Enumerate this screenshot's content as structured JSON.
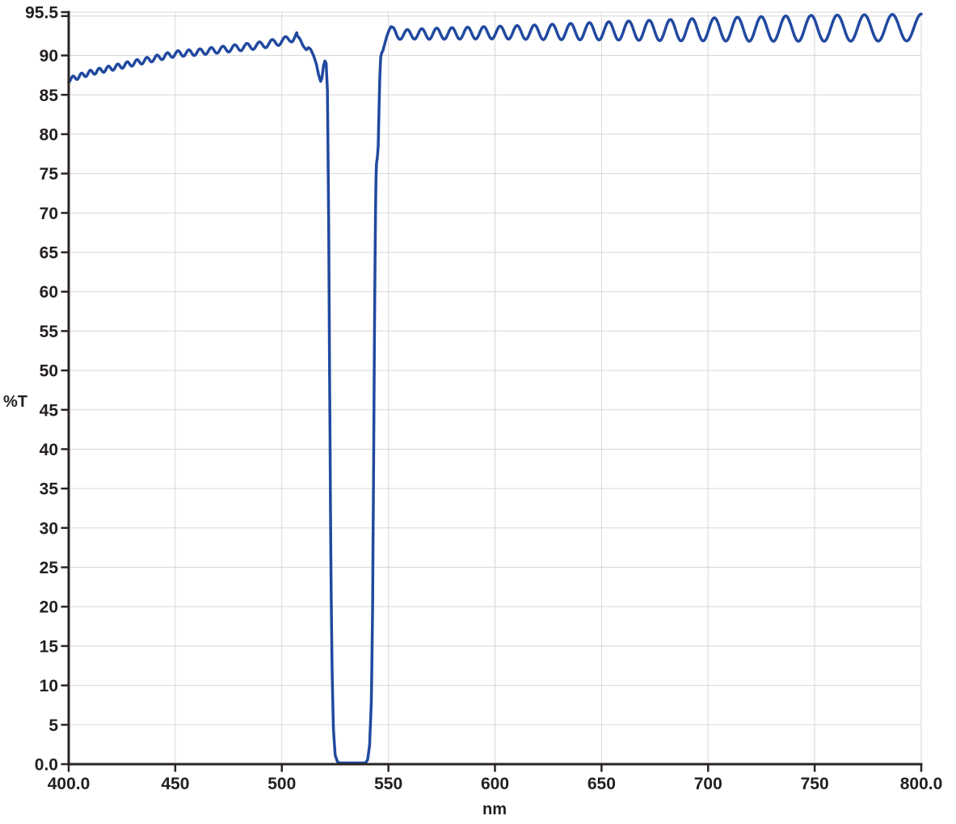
{
  "chart_data": {
    "type": "line",
    "title": "",
    "xlabel": "nm",
    "ylabel": "%T",
    "xlim": [
      400,
      800
    ],
    "ylim": [
      0,
      95.5
    ],
    "grid": true,
    "legend": "none",
    "x_ticks": [
      {
        "value": 400,
        "label": "400.0",
        "grid": false
      },
      {
        "value": 450,
        "label": "450",
        "grid": true
      },
      {
        "value": 500,
        "label": "500",
        "grid": true
      },
      {
        "value": 550,
        "label": "550",
        "grid": true
      },
      {
        "value": 600,
        "label": "600",
        "grid": true
      },
      {
        "value": 650,
        "label": "650",
        "grid": true
      },
      {
        "value": 700,
        "label": "700",
        "grid": true
      },
      {
        "value": 750,
        "label": "750",
        "grid": true
      },
      {
        "value": 800,
        "label": "800.0",
        "grid": true
      }
    ],
    "y_ticks": [
      {
        "value": 95.5,
        "label": "95.5",
        "grid": true
      },
      {
        "value": 95,
        "label": "",
        "grid": true
      },
      {
        "value": 90,
        "label": "90",
        "grid": true
      },
      {
        "value": 85,
        "label": "85",
        "grid": true
      },
      {
        "value": 80,
        "label": "80",
        "grid": true
      },
      {
        "value": 75,
        "label": "75",
        "grid": true
      },
      {
        "value": 70,
        "label": "70",
        "grid": true
      },
      {
        "value": 65,
        "label": "65",
        "grid": true
      },
      {
        "value": 60,
        "label": "60",
        "grid": true
      },
      {
        "value": 55,
        "label": "55",
        "grid": true
      },
      {
        "value": 50,
        "label": "50",
        "grid": true
      },
      {
        "value": 45,
        "label": "45",
        "grid": true
      },
      {
        "value": 40,
        "label": "40",
        "grid": true
      },
      {
        "value": 35,
        "label": "35",
        "grid": true
      },
      {
        "value": 30,
        "label": "30",
        "grid": true
      },
      {
        "value": 25,
        "label": "25",
        "grid": true
      },
      {
        "value": 20,
        "label": "20",
        "grid": true
      },
      {
        "value": 15,
        "label": "15",
        "grid": true
      },
      {
        "value": 10,
        "label": "10",
        "grid": true
      },
      {
        "value": 5,
        "label": "5",
        "grid": true
      },
      {
        "value": 0,
        "label": "0.0",
        "grid": false
      }
    ],
    "key_values": {
      "notch_center_nm": 532.8,
      "notch_width_50pct_nm": 20.9,
      "notch_50pct_edges_nm": [
        522.4,
        543.3
      ],
      "min_transmission_pct": 0.15,
      "max_transmission_pct": 95.3,
      "recovery_edge_step_pct": 77
    },
    "series": [
      {
        "name": "transmission spectrum",
        "color": "#2149A0",
        "description": "Notch filter %T spectrum: rippled 87-93%T (400-520 nm), blocking band ~0%T (525-540 nm), rippled 92-95%T (550-800 nm) with fringe period and amplitude growing toward 800 nm",
        "model": {
          "left": {
            "envelope": [
              [
                400,
                86.9
              ],
              [
                410,
                87.8
              ],
              [
                420,
                88.4
              ],
              [
                430,
                89.0
              ],
              [
                440,
                89.6
              ],
              [
                450,
                90.2
              ],
              [
                460,
                90.4
              ],
              [
                470,
                90.7
              ],
              [
                480,
                91.0
              ],
              [
                490,
                91.3
              ],
              [
                500,
                91.8
              ],
              [
                505,
                92.2
              ],
              [
                507,
                92.6
              ]
            ],
            "ripple_amp": [
              [
                400,
                0.3
              ],
              [
                500,
                0.45
              ],
              [
                507,
                0.45
              ]
            ],
            "ripple_inv_lambda_spacing": 2.47e-05,
            "ripple_ref_lambda": 400,
            "ripple_phase_deg": 180
          },
          "descent": [
            [
              507,
              92.6
            ],
            [
              508.5,
              92.1
            ],
            [
              510,
              91.2
            ],
            [
              511.5,
              90.7
            ],
            [
              512.5,
              91.0
            ],
            [
              513.5,
              90.8
            ],
            [
              515,
              89.9
            ],
            [
              516.2,
              88.9
            ],
            [
              517.2,
              87.6
            ],
            [
              518.2,
              86.7
            ],
            [
              518.8,
              87.1
            ],
            [
              519.5,
              88.6
            ],
            [
              520.2,
              89.3
            ],
            [
              520.8,
              89.0
            ],
            [
              521.4,
              85.5
            ],
            [
              521.9,
              72
            ],
            [
              522.4,
              50
            ],
            [
              522.9,
              29
            ],
            [
              523.5,
              13
            ],
            [
              524.2,
              4.5
            ],
            [
              525.0,
              1.2
            ],
            [
              526.0,
              0.35
            ],
            [
              527.0,
              0.15
            ]
          ],
          "notch_flat": {
            "from": 527.0,
            "to": 539.3,
            "value": 0.15
          },
          "rise": [
            [
              539.3,
              0.15
            ],
            [
              540.3,
              0.6
            ],
            [
              541.2,
              2.5
            ],
            [
              542.0,
              8
            ],
            [
              542.6,
              20
            ],
            [
              543.0,
              36
            ],
            [
              543.4,
              52
            ],
            [
              543.8,
              66
            ],
            [
              544.1,
              73.5
            ],
            [
              544.4,
              76.3
            ],
            [
              544.9,
              77.2
            ],
            [
              545.2,
              78.5
            ],
            [
              545.6,
              83
            ],
            [
              546.0,
              87.5
            ],
            [
              546.4,
              89.8
            ],
            [
              546.8,
              90.3
            ],
            [
              547.4,
              90.6
            ],
            [
              548.2,
              91.4
            ],
            [
              549.2,
              92.4
            ],
            [
              550.3,
              93.2
            ],
            [
              551.3,
              93.7
            ]
          ],
          "right": {
            "mean": [
              [
                551.3,
                93.2
              ],
              [
                554,
                92.6
              ],
              [
                560,
                92.7
              ],
              [
                580,
                92.8
              ],
              [
                600,
                92.9
              ],
              [
                620,
                92.95
              ],
              [
                640,
                93.05
              ],
              [
                660,
                93.15
              ],
              [
                680,
                93.2
              ],
              [
                700,
                93.3
              ],
              [
                720,
                93.35
              ],
              [
                750,
                93.45
              ],
              [
                780,
                93.5
              ],
              [
                800,
                93.55
              ]
            ],
            "ripple_amp": [
              [
                551.3,
                0.55
              ],
              [
                570,
                0.7
              ],
              [
                600,
                0.8
              ],
              [
                630,
                1.0
              ],
              [
                660,
                1.2
              ],
              [
                690,
                1.4
              ],
              [
                720,
                1.55
              ],
              [
                750,
                1.65
              ],
              [
                800,
                1.7
              ]
            ],
            "ripple_inv_lambda_spacing": 2.1576e-05,
            "ripple_ref_lambda": 555.5,
            "ripple_phase_deg": 180
          }
        }
      }
    ]
  },
  "styles": {
    "curve_color": "#2149A0",
    "grid_color": "#D7D7D7",
    "axis_color": "#2A2523",
    "text_color": "#231F1E",
    "background": "#FFFFFF"
  }
}
